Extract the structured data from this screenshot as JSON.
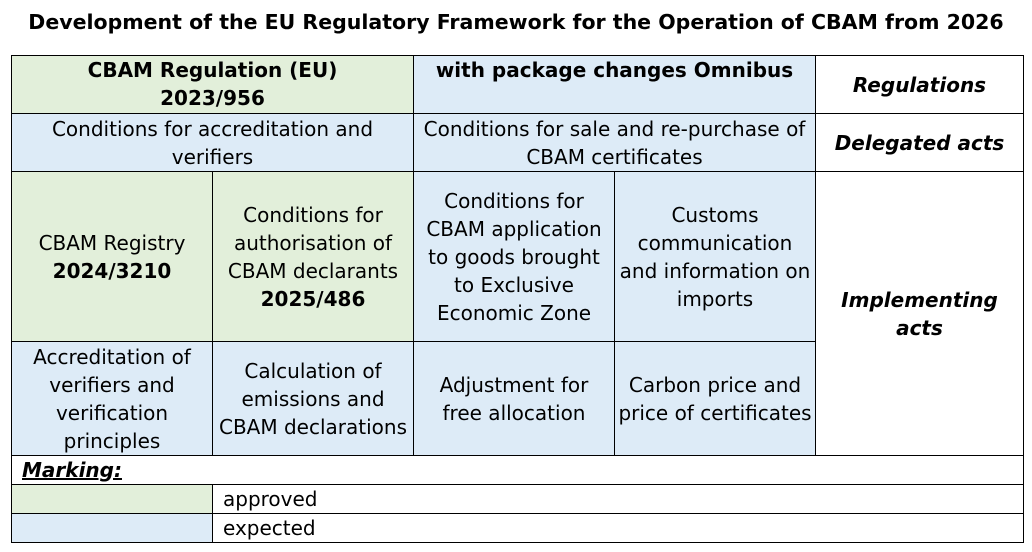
{
  "title": "Development of the EU Regulatory Framework for the Operation of CBAM from 2026",
  "rows": {
    "regulations": {
      "cbam_regulation_label": "CBAM Regulation (EU)",
      "cbam_regulation_number": "2023/956",
      "omnibus": "with package changes Omnibus",
      "category": "Regulations"
    },
    "delegated": {
      "accreditation": "Conditions for accreditation and verifiers",
      "sale": "Conditions for sale and re-purchase of CBAM certificates",
      "category": "Delegated acts"
    },
    "implementing": {
      "registry_label": "CBAM Registry",
      "registry_number": "2024/3210",
      "authorisation_label": "Conditions for authorisation of CBAM declarants",
      "authorisation_number": "2025/486",
      "eez": "Conditions for CBAM application to goods brought to Exclusive Economic Zone",
      "customs": "Customs communication and information on imports",
      "category": "Implementing acts",
      "accreditation_verifiers": "Accreditation of verifiers and verification principles",
      "calculation": "Calculation of emissions and CBAM declarations",
      "adjustment": "Adjustment for free allocation",
      "carbon_price": "Carbon price and price of certificates"
    }
  },
  "legend": {
    "heading": "Marking:",
    "approved": "approved",
    "expected": "expected"
  },
  "colors": {
    "approved": "#e2efda",
    "expected": "#ddebf7"
  }
}
